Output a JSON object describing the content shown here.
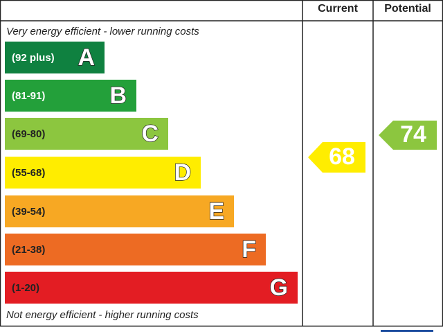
{
  "header": {
    "current": "Current",
    "potential": "Potential"
  },
  "top_note": "Very energy efficient - lower running costs",
  "bottom_note": "Not energy efficient - higher running costs",
  "bands": [
    {
      "range": "(92 plus)",
      "letter": "A"
    },
    {
      "range": "(81-91)",
      "letter": "B"
    },
    {
      "range": "(69-80)",
      "letter": "C"
    },
    {
      "range": "(55-68)",
      "letter": "D"
    },
    {
      "range": "(39-54)",
      "letter": "E"
    },
    {
      "range": "(21-38)",
      "letter": "F"
    },
    {
      "range": "(1-20)",
      "letter": "G"
    }
  ],
  "current": "68",
  "potential": "74"
}
